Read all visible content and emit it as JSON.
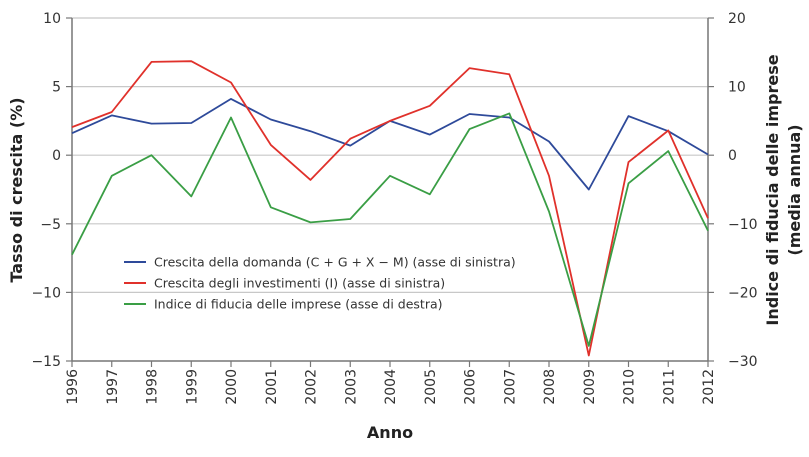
{
  "chart_data": {
    "type": "line",
    "xlabel": "Anno",
    "ylabel": "Tasso di crescita (%)",
    "ylabel_right": [
      "Indice di fiducia delle imprese",
      "(media annua)"
    ],
    "x": [
      1996,
      1997,
      1998,
      1999,
      2000,
      2001,
      2002,
      2003,
      2004,
      2005,
      2006,
      2007,
      2008,
      2009,
      2010,
      2011,
      2012
    ],
    "ylim": [
      -15,
      10
    ],
    "ylim_right": [
      -30,
      20
    ],
    "yticks": [
      10,
      5,
      0,
      -5,
      -10,
      -15
    ],
    "yticks_right": [
      20,
      10,
      0,
      -10,
      -20,
      -30
    ],
    "ytick_labels": [
      "10",
      "5",
      "0",
      "−5",
      "−10",
      "−15"
    ],
    "ytick_labels_right": [
      "20",
      "10",
      "0",
      "−10",
      "−20",
      "−30"
    ],
    "grid": true,
    "legend_placement": "bottom-left",
    "series": [
      {
        "name": "Crescita della domanda (C + G + X − M) (asse di sinistra)",
        "axis": "left",
        "color": "#2e4a9a",
        "values": [
          1.6,
          2.9,
          2.3,
          2.35,
          4.1,
          2.6,
          1.75,
          0.7,
          2.5,
          1.5,
          3.0,
          2.75,
          1.0,
          -2.5,
          2.85,
          1.75,
          0.05
        ]
      },
      {
        "name": "Crescita degli investimenti (I) (asse di sinistra)",
        "axis": "left",
        "color": "#e0312b",
        "values": [
          2.05,
          3.15,
          6.8,
          6.85,
          5.3,
          0.75,
          -1.8,
          1.2,
          2.5,
          3.6,
          6.35,
          5.9,
          -1.5,
          -14.6,
          -0.5,
          1.8,
          -4.6
        ]
      },
      {
        "name": "Indice di fiducia delle imprese (asse di destra)",
        "axis": "right",
        "color": "#3a9e45",
        "values": [
          -14.5,
          -3.0,
          0.0,
          -6.0,
          5.5,
          -7.6,
          -9.8,
          -9.3,
          -3.0,
          -5.7,
          3.8,
          6.1,
          -8.2,
          -27.8,
          -4.1,
          0.6,
          -11.0
        ]
      }
    ]
  }
}
